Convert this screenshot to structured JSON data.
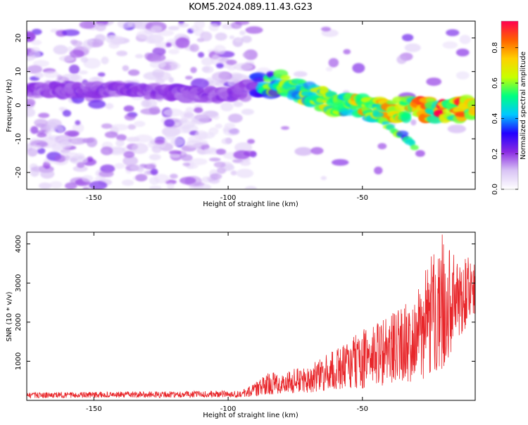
{
  "title": "KOM5.2024.089.11.43.G23",
  "colors": {
    "snr_line": "#e8262a",
    "colorbar_stops": [
      "#ffffff",
      "#d9c4f5",
      "#8a2be2",
      "#2200ff",
      "#00c8ff",
      "#00ff80",
      "#c8ff00",
      "#ffd000",
      "#ff6000",
      "#ff0050"
    ]
  },
  "chart_data": [
    {
      "type": "heatmap",
      "xlabel": "Height of straight line (km)",
      "ylabel": "Frequency (Hz)",
      "xlim": [
        -175,
        -8
      ],
      "ylim": [
        -25,
        25
      ],
      "xticks": [
        -150,
        -100,
        -50
      ],
      "yticks": [
        -20,
        -10,
        0,
        10,
        20
      ],
      "grid": false,
      "ridge": {
        "x": [
          -170,
          -140,
          -120,
          -100,
          -90,
          -80,
          -70,
          -60,
          -50,
          -40,
          -30,
          -20,
          -10
        ],
        "y": [
          4.5,
          4.5,
          3.5,
          3.0,
          6.0,
          6.5,
          3.0,
          0.5,
          -0.5,
          -2.0,
          -0.5,
          -2.0,
          -1.0
        ],
        "secondary_branch": {
          "x": [
            -45,
            -40,
            -35,
            -30
          ],
          "y": [
            -3.0,
            -6.0,
            -9.0,
            -12.5
          ]
        }
      },
      "colorbar": {
        "label": "Normalized spectral amplitude",
        "range": [
          0.0,
          0.95
        ],
        "ticks": [
          0.0,
          0.2,
          0.4,
          0.6,
          0.8
        ],
        "tick_labels": [
          "0.0",
          "0.2",
          "0.4",
          "0.6",
          "0.8"
        ]
      }
    },
    {
      "type": "line",
      "xlabel": "Height of straight line (km)",
      "ylabel": "SNR (10 * v/v)",
      "xlim": [
        -175,
        -8
      ],
      "ylim": [
        0,
        4300
      ],
      "xticks": [
        -150,
        -100,
        -50
      ],
      "yticks": [
        1000,
        2000,
        3000,
        4000
      ],
      "grid": false,
      "envelope": {
        "x": [
          -175,
          -95,
          -90,
          -85,
          -70,
          -60,
          -50,
          -40,
          -30,
          -25,
          -20,
          -15,
          -10,
          -8
        ],
        "y_max": [
          200,
          250,
          450,
          700,
          900,
          1300,
          1800,
          2200,
          2700,
          3600,
          4300,
          3600,
          3700,
          3600
        ],
        "y_min": [
          60,
          80,
          100,
          150,
          200,
          250,
          300,
          400,
          500,
          600,
          800,
          1500,
          2000,
          2200
        ]
      }
    }
  ]
}
